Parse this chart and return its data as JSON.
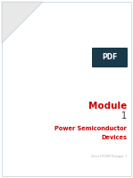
{
  "bg_color": "#ffffff",
  "title_line1": "Module",
  "title_line2": "1",
  "subtitle_line1": "Power Semiconductor",
  "subtitle_line2": "Devices",
  "footer_text": "Version 1 MOSFET Kharagpur   1",
  "title_color": "#cc0000",
  "number_color": "#333333",
  "subtitle_color": "#cc0000",
  "footer_color": "#aaaaaa",
  "title_fontsize": 7.5,
  "number_fontsize": 7.0,
  "subtitle_fontsize": 4.8,
  "footer_fontsize": 1.8,
  "pdf_badge_color": "#1a3a4a",
  "pdf_text_color": "#ffffff",
  "pdf_fontsize": 5.5,
  "border_color": "#b0c4d0",
  "fold_color": "#e8e8e8",
  "fold_border_color": "#b0c4d0"
}
